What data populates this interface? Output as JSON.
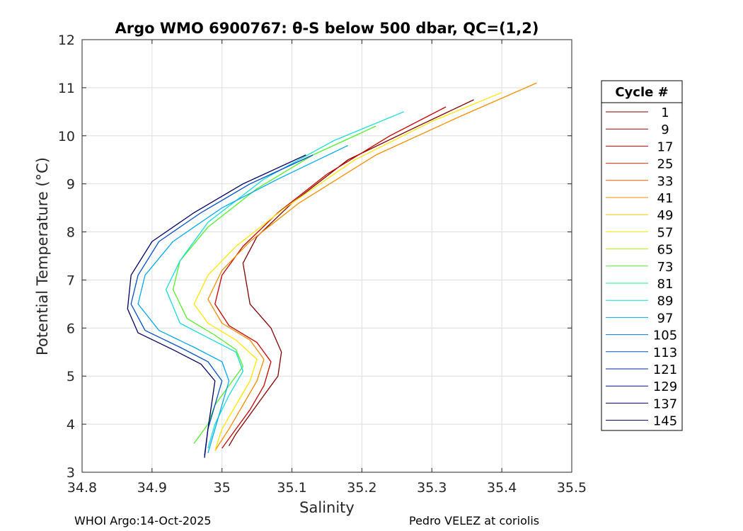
{
  "chart_data": {
    "type": "line",
    "title": "Argo WMO 6900767: θ-S below 500 dbar,  QC=(1,2)",
    "xlabel": "Salinity",
    "ylabel": "Potential Temperature (°C)",
    "xlim": [
      34.8,
      35.5
    ],
    "ylim": [
      3,
      12
    ],
    "xticks": [
      "34.8",
      "34.9",
      "35",
      "35.1",
      "35.2",
      "35.3",
      "35.4",
      "35.5"
    ],
    "yticks": [
      "3",
      "4",
      "5",
      "6",
      "7",
      "8",
      "9",
      "10",
      "11",
      "12"
    ],
    "grid": true,
    "legend": {
      "title": "Cycle #",
      "placement": "outside-right",
      "entries": [
        {
          "label": "1",
          "color": "#800000"
        },
        {
          "label": "9",
          "color": "#a00000"
        },
        {
          "label": "17",
          "color": "#c80000"
        },
        {
          "label": "25",
          "color": "#e62800"
        },
        {
          "label": "33",
          "color": "#f05a00"
        },
        {
          "label": "41",
          "color": "#f58c00"
        },
        {
          "label": "49",
          "color": "#f5c800"
        },
        {
          "label": "57",
          "color": "#ffe600"
        },
        {
          "label": "65",
          "color": "#b4f000"
        },
        {
          "label": "73",
          "color": "#50f028"
        },
        {
          "label": "81",
          "color": "#14f08c"
        },
        {
          "label": "89",
          "color": "#14dcdc"
        },
        {
          "label": "97",
          "color": "#00aaf0"
        },
        {
          "label": "105",
          "color": "#0078dc"
        },
        {
          "label": "113",
          "color": "#0050c8"
        },
        {
          "label": "121",
          "color": "#0028b4"
        },
        {
          "label": "129",
          "color": "#00148c"
        },
        {
          "label": "137",
          "color": "#00006e"
        },
        {
          "label": "145",
          "color": "#000064"
        }
      ]
    },
    "series": [
      {
        "color": "#800000",
        "x": [
          35.36,
          35.28,
          35.18,
          35.1,
          35.05,
          35.03,
          35.04,
          35.07,
          35.085,
          35.08,
          35.06,
          35.04,
          35.02,
          35.01
        ],
        "y": [
          10.75,
          10.2,
          9.5,
          8.6,
          7.9,
          7.35,
          6.5,
          6.0,
          5.5,
          5.0,
          4.6,
          4.2,
          3.8,
          3.55
        ]
      },
      {
        "color": "#c80000",
        "x": [
          35.32,
          35.24,
          35.15,
          35.08,
          35.03,
          35.0,
          34.99,
          35.01,
          35.05,
          35.07,
          35.06,
          35.04,
          35.02,
          35.0
        ],
        "y": [
          10.6,
          10.0,
          9.2,
          8.4,
          7.7,
          7.1,
          6.5,
          6.05,
          5.7,
          5.3,
          4.8,
          4.3,
          3.9,
          3.5
        ]
      },
      {
        "color": "#f58c00",
        "x": [
          35.45,
          35.34,
          35.22,
          35.11,
          35.04,
          35.0,
          34.98,
          35.0,
          35.04,
          35.06,
          35.05,
          35.03,
          35.01,
          34.99
        ],
        "y": [
          11.1,
          10.4,
          9.6,
          8.6,
          7.8,
          7.2,
          6.6,
          6.1,
          5.75,
          5.35,
          4.9,
          4.4,
          3.9,
          3.45
        ]
      },
      {
        "color": "#ffe600",
        "x": [
          35.4,
          35.3,
          35.19,
          35.09,
          35.02,
          34.98,
          34.96,
          34.98,
          35.02,
          35.05,
          35.04,
          35.02,
          35.0,
          34.99
        ],
        "y": [
          10.9,
          10.3,
          9.5,
          8.5,
          7.7,
          7.1,
          6.5,
          6.1,
          5.75,
          5.35,
          4.9,
          4.4,
          3.9,
          3.45
        ]
      },
      {
        "color": "#50f028",
        "x": [
          35.22,
          35.13,
          35.05,
          34.98,
          34.94,
          34.93,
          34.95,
          34.99,
          35.02,
          35.03,
          35.01,
          34.99,
          34.98,
          34.97,
          34.96
        ],
        "y": [
          10.2,
          9.6,
          8.9,
          8.1,
          7.4,
          6.8,
          6.2,
          5.85,
          5.55,
          5.2,
          4.8,
          4.4,
          4.0,
          3.8,
          3.6
        ]
      },
      {
        "color": "#14dcdc",
        "x": [
          35.26,
          35.16,
          35.06,
          34.98,
          34.94,
          34.92,
          34.94,
          34.98,
          35.02,
          35.03,
          35.01,
          34.99,
          34.98
        ],
        "y": [
          10.5,
          9.9,
          9.1,
          8.2,
          7.4,
          6.8,
          6.1,
          5.8,
          5.5,
          5.1,
          4.6,
          4.0,
          3.5
        ]
      },
      {
        "color": "#00aaf0",
        "x": [
          35.18,
          35.08,
          35.0,
          34.93,
          34.89,
          34.88,
          34.91,
          34.96,
          35.0,
          35.01,
          35.0,
          34.99,
          34.98
        ],
        "y": [
          9.8,
          9.1,
          8.5,
          7.8,
          7.1,
          6.5,
          5.95,
          5.6,
          5.3,
          4.9,
          4.4,
          3.9,
          3.4
        ]
      },
      {
        "color": "#0050c8",
        "x": [
          35.13,
          35.04,
          34.97,
          34.91,
          34.88,
          34.87,
          34.89,
          34.94,
          34.98,
          35.0,
          34.99,
          34.98,
          34.975
        ],
        "y": [
          9.6,
          9.0,
          8.4,
          7.8,
          7.1,
          6.5,
          5.95,
          5.6,
          5.3,
          4.9,
          4.4,
          3.9,
          3.35
        ]
      },
      {
        "color": "#000064",
        "x": [
          35.12,
          35.03,
          34.96,
          34.9,
          34.87,
          34.865,
          34.88,
          34.93,
          34.97,
          34.99,
          34.985,
          34.98,
          34.975
        ],
        "y": [
          9.6,
          9.0,
          8.4,
          7.8,
          7.1,
          6.4,
          5.9,
          5.55,
          5.25,
          4.9,
          4.4,
          3.9,
          3.3
        ]
      }
    ]
  },
  "footer": {
    "left": "WHOI Argo:14-Oct-2025",
    "right": "Pedro VELEZ at coriolis"
  }
}
